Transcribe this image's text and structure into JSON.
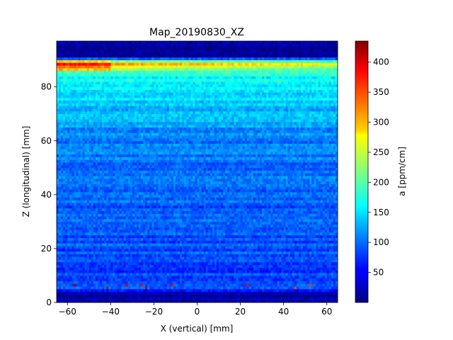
{
  "chart_data": {
    "type": "heatmap",
    "title": "Map_20190830_XZ",
    "xlabel": "X (vertical) [mm]",
    "ylabel": "Z (longitudinal) [mm]",
    "xlim": [
      -65,
      65
    ],
    "ylim": [
      0,
      97
    ],
    "xticks": [
      -60,
      -40,
      -20,
      0,
      20,
      40,
      60
    ],
    "yticks": [
      0,
      20,
      40,
      60,
      80
    ],
    "colorbar": {
      "label": "a [ppm/cm]",
      "colormap": "jet",
      "range": [
        0,
        435
      ],
      "ticks": [
        50,
        100,
        150,
        200,
        250,
        300,
        350,
        400
      ]
    },
    "pixel_size_mm": [
      1,
      1
    ],
    "profile_z": [
      0,
      3,
      4,
      5,
      6,
      7,
      8,
      10,
      15,
      20,
      30,
      40,
      50,
      60,
      70,
      75,
      80,
      85,
      87,
      88,
      89,
      90,
      91,
      97
    ],
    "profile_value": [
      10,
      15,
      40,
      75,
      120,
      85,
      80,
      80,
      85,
      88,
      90,
      95,
      100,
      110,
      130,
      150,
      160,
      175,
      260,
      320,
      330,
      150,
      10,
      10
    ],
    "hot_spots": [
      {
        "x": -57,
        "z": 6,
        "value": 420
      },
      {
        "x": -42,
        "z": 5,
        "value": 410
      },
      {
        "x": -33,
        "z": 6,
        "value": 400
      },
      {
        "x": -26,
        "z": 6,
        "value": 380
      },
      {
        "x": -24,
        "z": 5,
        "value": 420
      },
      {
        "x": -12,
        "z": 6,
        "value": 390
      },
      {
        "x": 23,
        "z": 6,
        "value": 380
      },
      {
        "x": 45,
        "z": 5,
        "value": 350
      },
      {
        "x": 52,
        "z": 6,
        "value": 360
      }
    ]
  }
}
